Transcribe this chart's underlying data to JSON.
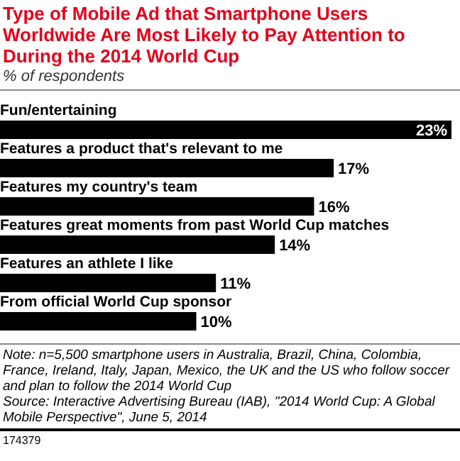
{
  "chart_data": {
    "type": "bar",
    "orientation": "horizontal",
    "title": "Type of Mobile Ad that Smartphone Users Worldwide Are Most Likely to Pay Attention to During the 2014 World Cup",
    "subtitle": "% of respondents",
    "categories": [
      "Fun/entertaining",
      "Features a product that's relevant to me",
      "Features my country's team",
      "Features great moments from past World Cup matches",
      "Features an athlete I like",
      "From official World Cup sponsor"
    ],
    "values": [
      23,
      17,
      16,
      14,
      11,
      10
    ],
    "value_labels": [
      "23%",
      "17%",
      "16%",
      "14%",
      "11%",
      "10%"
    ],
    "color": "#000000",
    "annotations": [
      "Note: n=5,500 smartphone users in Australia, Brazil, China, Colombia, France, Ireland, Italy, Japan, Mexico, the UK and the US who follow soccer and plan to follow the 2014 World Cup",
      "Source: Interactive Advertising Bureau (IAB), \"2014 World Cup: A Global Mobile Perspective\", June 5, 2014",
      "174379"
    ]
  }
}
